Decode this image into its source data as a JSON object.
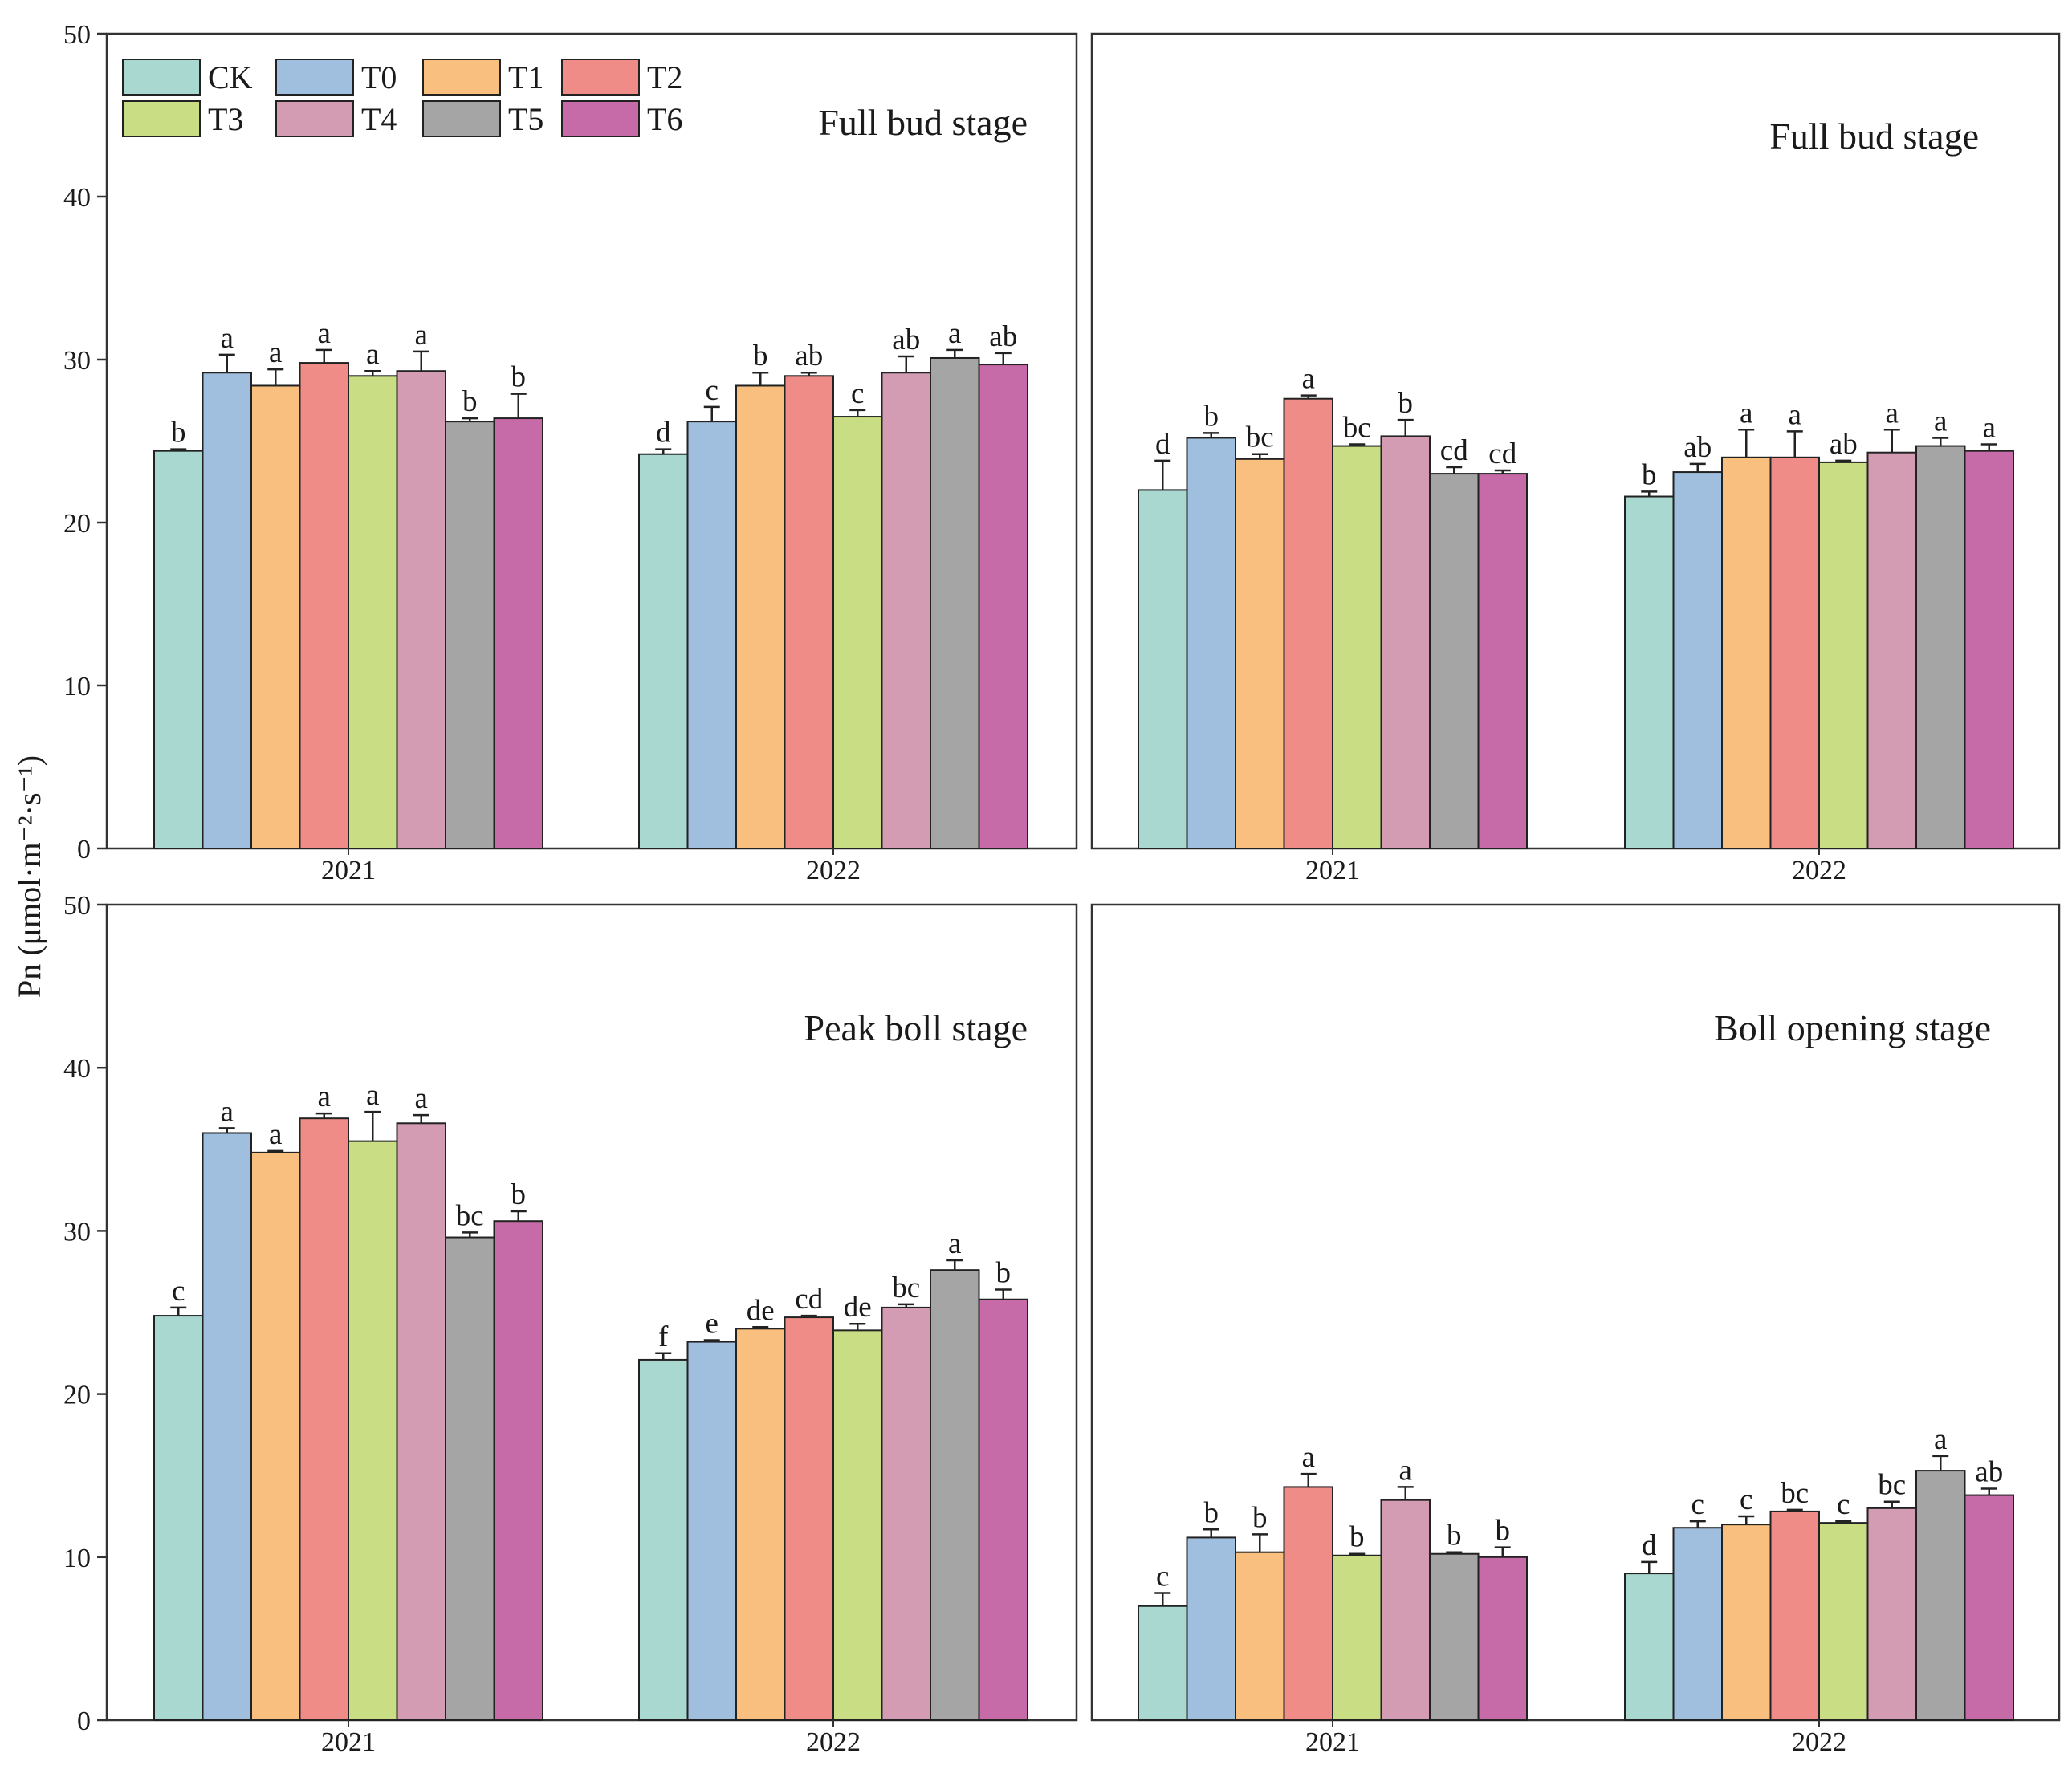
{
  "chart_data": {
    "type": "bar",
    "ylabel": "Pn (μmol·m⁻²·s⁻¹)",
    "ylim": [
      0,
      50
    ],
    "yticks": [
      "0",
      "10",
      "20",
      "30",
      "40",
      "50"
    ],
    "groups": [
      "2021",
      "2022"
    ],
    "legend": [
      {
        "name": "CK",
        "color": "#a8d8d0"
      },
      {
        "name": "T0",
        "color": "#a0bedd"
      },
      {
        "name": "T1",
        "color": "#f8bf7e"
      },
      {
        "name": "T2",
        "color": "#f08c88"
      },
      {
        "name": "T3",
        "color": "#c9dd85"
      },
      {
        "name": "T4",
        "color": "#d49cb2"
      },
      {
        "name": "T5",
        "color": "#a5a5a5"
      },
      {
        "name": "T6",
        "color": "#c76aa8"
      }
    ],
    "panels": [
      {
        "title": "Full bud stage",
        "groups": [
          {
            "values": [
              24.4,
              29.2,
              28.4,
              29.8,
              29.0,
              29.3,
              26.2,
              26.4
            ],
            "errors": [
              0.1,
              1.1,
              1.0,
              0.8,
              0.3,
              1.2,
              0.2,
              1.5
            ],
            "labels": [
              "b",
              "a",
              "a",
              "a",
              "a",
              "a",
              "b",
              "b"
            ]
          },
          {
            "values": [
              24.2,
              26.2,
              28.4,
              29.0,
              26.5,
              29.2,
              30.1,
              29.7
            ],
            "errors": [
              0.3,
              0.9,
              0.8,
              0.2,
              0.4,
              1.0,
              0.5,
              0.7
            ],
            "labels": [
              "d",
              "c",
              "b",
              "ab",
              "c",
              "ab",
              "a",
              "ab"
            ]
          }
        ]
      },
      {
        "title": "Full bud stage",
        "groups": [
          {
            "values": [
              22.0,
              25.2,
              23.9,
              27.6,
              24.7,
              25.3,
              23.0,
              23.0
            ],
            "errors": [
              1.8,
              0.3,
              0.3,
              0.2,
              0.1,
              1.0,
              0.4,
              0.2
            ],
            "labels": [
              "d",
              "b",
              "bc",
              "a",
              "bc",
              "b",
              "cd",
              "cd"
            ]
          },
          {
            "values": [
              21.6,
              23.1,
              24.0,
              24.0,
              23.7,
              24.3,
              24.7,
              24.4
            ],
            "errors": [
              0.3,
              0.5,
              1.7,
              1.6,
              0.1,
              1.4,
              0.5,
              0.4
            ],
            "labels": [
              "b",
              "ab",
              "a",
              "a",
              "ab",
              "a",
              "a",
              "a"
            ]
          }
        ]
      },
      {
        "title": "Peak boll stage",
        "groups": [
          {
            "values": [
              24.8,
              36.0,
              34.8,
              36.9,
              35.5,
              36.6,
              29.6,
              30.6
            ],
            "errors": [
              0.5,
              0.3,
              0.1,
              0.3,
              1.8,
              0.5,
              0.3,
              0.6
            ],
            "labels": [
              "c",
              "a",
              "a",
              "a",
              "a",
              "a",
              "bc",
              "b"
            ]
          },
          {
            "values": [
              22.1,
              23.2,
              24.0,
              24.7,
              23.9,
              25.3,
              27.6,
              25.8
            ],
            "errors": [
              0.4,
              0.1,
              0.1,
              0.1,
              0.4,
              0.2,
              0.6,
              0.6
            ],
            "labels": [
              "f",
              "e",
              "de",
              "cd",
              "de",
              "bc",
              "a",
              "b"
            ]
          }
        ]
      },
      {
        "title": "Boll opening stage",
        "groups": [
          {
            "values": [
              7.0,
              11.2,
              10.3,
              14.3,
              10.1,
              13.5,
              10.2,
              10.0
            ],
            "errors": [
              0.8,
              0.5,
              1.1,
              0.8,
              0.1,
              0.8,
              0.1,
              0.6
            ],
            "labels": [
              "c",
              "b",
              "b",
              "a",
              "b",
              "a",
              "b",
              "b"
            ]
          },
          {
            "values": [
              9.0,
              11.8,
              12.0,
              12.8,
              12.1,
              13.0,
              15.3,
              13.8
            ],
            "errors": [
              0.7,
              0.4,
              0.5,
              0.1,
              0.1,
              0.4,
              0.9,
              0.4
            ],
            "labels": [
              "d",
              "c",
              "c",
              "bc",
              "c",
              "bc",
              "a",
              "ab"
            ]
          }
        ]
      }
    ]
  }
}
